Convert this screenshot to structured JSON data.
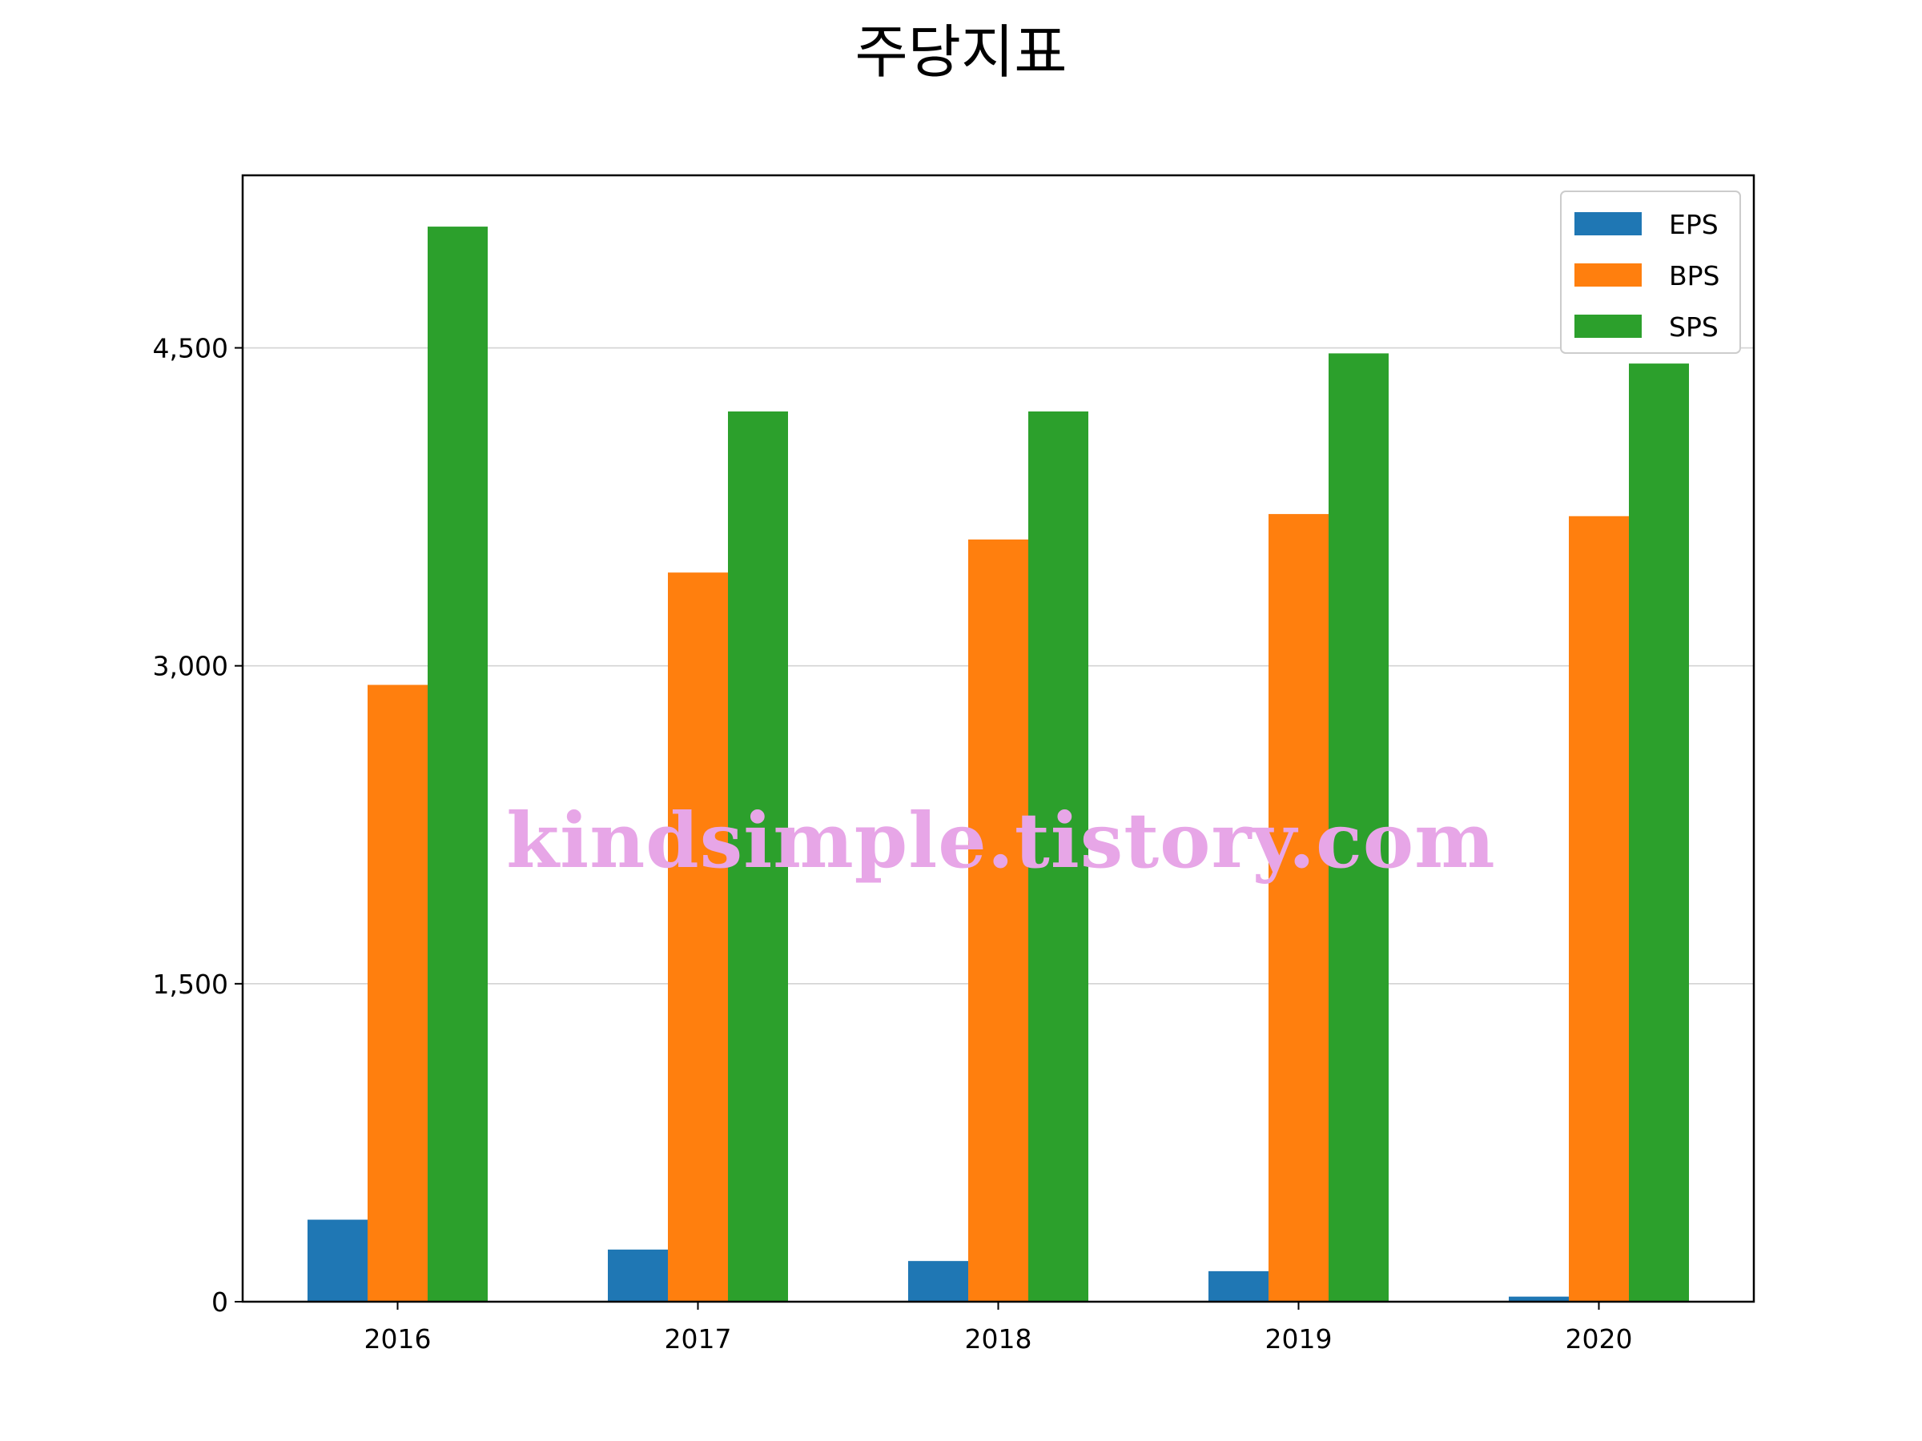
{
  "chart_data": {
    "type": "bar",
    "title": "주당지표",
    "xlabel": "",
    "ylabel": "",
    "categories": [
      "2016",
      "2017",
      "2018",
      "2019",
      "2020"
    ],
    "series": [
      {
        "name": "EPS",
        "color": "#1f77b4",
        "values": [
          387,
          246,
          192,
          144,
          24
        ]
      },
      {
        "name": "BPS",
        "color": "#ff7f0e",
        "values": [
          2910,
          3440,
          3596,
          3716,
          3706
        ]
      },
      {
        "name": "SPS",
        "color": "#2ca02c",
        "values": [
          5072,
          4200,
          4200,
          4474,
          4426
        ]
      }
    ],
    "ylim": [
      0,
      5314
    ],
    "yticks": [
      0,
      1500,
      3000,
      4500
    ],
    "ytick_labels": [
      "0",
      "1,500",
      "3,000",
      "4,500"
    ],
    "grid": "y",
    "legend_position": "top-right",
    "watermark": "kindsimple.tistory.com"
  }
}
